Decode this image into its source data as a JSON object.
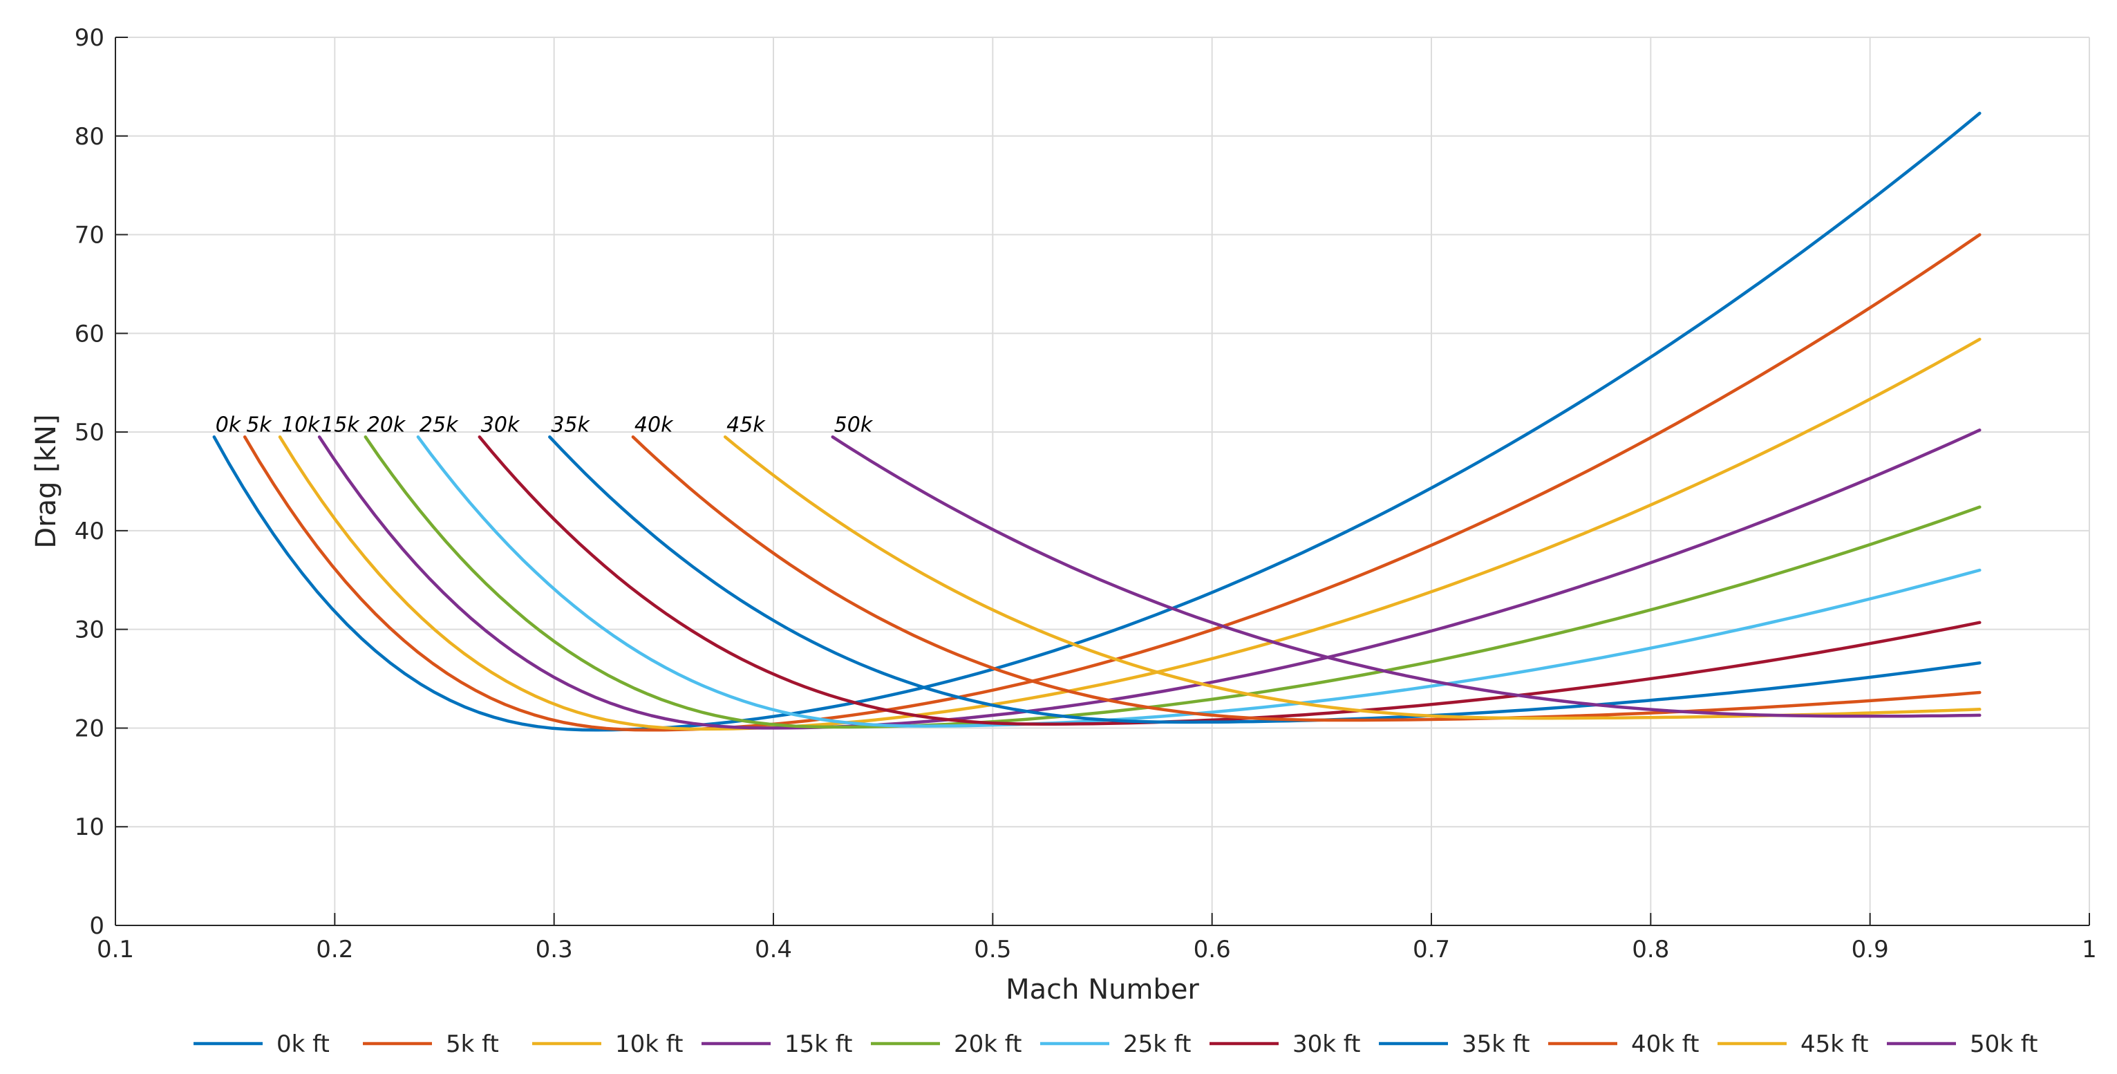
{
  "chart_data": {
    "type": "line",
    "title": "",
    "xlabel": "Mach Number",
    "ylabel": "Drag [kN]",
    "xlim": [
      0.1,
      1.0
    ],
    "ylim": [
      0,
      90
    ],
    "grid": true,
    "legend_position": "bottom",
    "x_ticks": [
      "0.1",
      "0.2",
      "0.3",
      "0.4",
      "0.5",
      "0.6",
      "0.7",
      "0.8",
      "0.9",
      "1"
    ],
    "y_ticks": [
      "0",
      "10",
      "20",
      "30",
      "40",
      "50",
      "60",
      "70",
      "80",
      "90"
    ],
    "series": [
      {
        "name": "0k ft",
        "curve_label": "0k",
        "color": "#0072BD",
        "start_x": 0.145,
        "start_y": 49.5,
        "min_x": 0.32,
        "min_y": 19.8,
        "end_x": 0.95,
        "end_y": 82.3
      },
      {
        "name": "5k ft",
        "curve_label": "5k",
        "color": "#D95319",
        "start_x": 0.159,
        "start_y": 49.5,
        "min_x": 0.345,
        "min_y": 19.8,
        "end_x": 0.95,
        "end_y": 70.0
      },
      {
        "name": "10k ft",
        "curve_label": "10k",
        "color": "#EDB120",
        "start_x": 0.175,
        "start_y": 49.5,
        "min_x": 0.37,
        "min_y": 19.9,
        "end_x": 0.95,
        "end_y": 59.4
      },
      {
        "name": "15k ft",
        "curve_label": "15k",
        "color": "#7E2F8E",
        "start_x": 0.193,
        "start_y": 49.5,
        "min_x": 0.4,
        "min_y": 20.0,
        "end_x": 0.95,
        "end_y": 50.2
      },
      {
        "name": "20k ft",
        "curve_label": "20k",
        "color": "#77AC30",
        "start_x": 0.214,
        "start_y": 49.5,
        "min_x": 0.43,
        "min_y": 20.1,
        "end_x": 0.95,
        "end_y": 42.4
      },
      {
        "name": "25k ft",
        "curve_label": "25k",
        "color": "#4DBEEE",
        "start_x": 0.238,
        "start_y": 49.5,
        "min_x": 0.47,
        "min_y": 20.2,
        "end_x": 0.95,
        "end_y": 36.0
      },
      {
        "name": "30k ft",
        "curve_label": "30k",
        "color": "#A2142F",
        "start_x": 0.266,
        "start_y": 49.5,
        "min_x": 0.525,
        "min_y": 20.4,
        "end_x": 0.95,
        "end_y": 30.7
      },
      {
        "name": "35k ft",
        "curve_label": "35k",
        "color": "#0072BD",
        "start_x": 0.298,
        "start_y": 49.5,
        "min_x": 0.59,
        "min_y": 20.6,
        "end_x": 0.95,
        "end_y": 26.6
      },
      {
        "name": "40k ft",
        "curve_label": "40k",
        "color": "#D95319",
        "start_x": 0.336,
        "start_y": 49.5,
        "min_x": 0.66,
        "min_y": 20.8,
        "end_x": 0.95,
        "end_y": 23.6
      },
      {
        "name": "45k ft",
        "curve_label": "45k",
        "color": "#EDB120",
        "start_x": 0.378,
        "start_y": 49.5,
        "min_x": 0.75,
        "min_y": 21.0,
        "end_x": 0.95,
        "end_y": 21.9
      },
      {
        "name": "50k ft",
        "curve_label": "50k",
        "color": "#7E2F8E",
        "start_x": 0.427,
        "start_y": 49.5,
        "min_x": 0.9,
        "min_y": 21.2,
        "end_x": 0.95,
        "end_y": 21.3
      }
    ]
  }
}
